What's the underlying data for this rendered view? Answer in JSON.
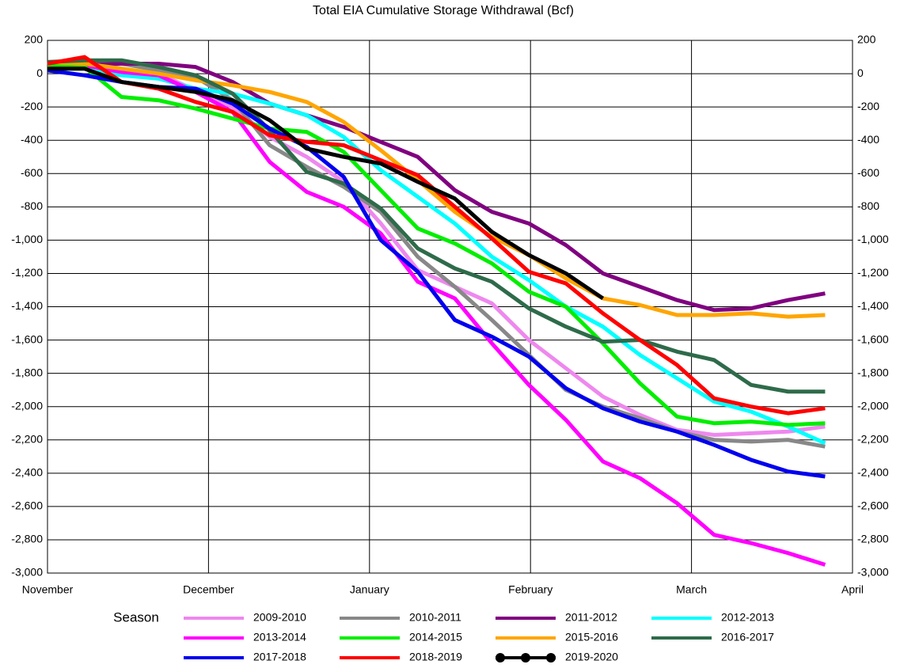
{
  "chart_data": {
    "type": "line",
    "title": "Total EIA Cumulative Storage Withdrawal (Bcf)",
    "legend_title": "Season",
    "grid": true,
    "x": [
      0,
      0.23,
      0.46,
      0.69,
      0.92,
      1.15,
      1.38,
      1.61,
      1.84,
      2.07,
      2.3,
      2.53,
      2.76,
      2.99,
      3.22,
      3.45,
      3.68,
      3.91,
      4.14,
      4.37,
      4.6,
      4.83
    ],
    "xlim": [
      0,
      5
    ],
    "xticks": [
      {
        "value": 0,
        "label": "November"
      },
      {
        "value": 1,
        "label": "December"
      },
      {
        "value": 2,
        "label": "January"
      },
      {
        "value": 3,
        "label": "February"
      },
      {
        "value": 4,
        "label": "March"
      },
      {
        "value": 5,
        "label": "April"
      }
    ],
    "ylim": [
      -3000,
      200
    ],
    "yticks": [
      {
        "value": -3000,
        "label": "-3,000"
      },
      {
        "value": -2800,
        "label": "-2,800"
      },
      {
        "value": -2600,
        "label": "-2,600"
      },
      {
        "value": -2400,
        "label": "-2,400"
      },
      {
        "value": -2200,
        "label": "-2,200"
      },
      {
        "value": -2000,
        "label": "-2,000"
      },
      {
        "value": -1800,
        "label": "-1,800"
      },
      {
        "value": -1600,
        "label": "-1,600"
      },
      {
        "value": -1400,
        "label": "-1,400"
      },
      {
        "value": -1200,
        "label": "-1,200"
      },
      {
        "value": -1000,
        "label": "-1,000"
      },
      -800,
      -600,
      -400,
      -200,
      0,
      200
    ],
    "series": [
      {
        "name": "2009-2010",
        "color": "#ee88ee",
        "values": [
          50,
          60,
          10,
          0,
          -100,
          -200,
          -380,
          -500,
          -650,
          -900,
          -1180,
          -1280,
          -1380,
          -1600,
          -1770,
          -1940,
          -2050,
          -2140,
          -2170,
          -2160,
          -2150,
          -2120
        ]
      },
      {
        "name": "2010-2011",
        "color": "#888888",
        "values": [
          50,
          70,
          60,
          20,
          -20,
          -160,
          -430,
          -560,
          -680,
          -830,
          -1100,
          -1280,
          -1480,
          -1690,
          -1900,
          -2000,
          -2070,
          -2150,
          -2200,
          -2210,
          -2200,
          -2240
        ]
      },
      {
        "name": "2011-2012",
        "color": "#800080",
        "values": [
          50,
          50,
          60,
          60,
          40,
          -50,
          -180,
          -250,
          -320,
          -410,
          -500,
          -700,
          -830,
          -900,
          -1030,
          -1200,
          -1280,
          -1360,
          -1420,
          -1410,
          -1360,
          -1320
        ]
      },
      {
        "name": "2012-2013",
        "color": "#00ffff",
        "values": [
          30,
          30,
          -10,
          -30,
          -90,
          -120,
          -180,
          -250,
          -380,
          -580,
          -740,
          -900,
          -1100,
          -1240,
          -1400,
          -1520,
          -1690,
          -1830,
          -1970,
          -2030,
          -2120,
          -2220
        ]
      },
      {
        "name": "2013-2014",
        "color": "#ff00ff",
        "values": [
          60,
          50,
          10,
          -10,
          -110,
          -230,
          -530,
          -710,
          -800,
          -960,
          -1250,
          -1350,
          -1620,
          -1870,
          -2080,
          -2330,
          -2430,
          -2580,
          -2770,
          -2820,
          -2880,
          -2950
        ]
      },
      {
        "name": "2014-2015",
        "color": "#00ee00",
        "values": [
          50,
          40,
          -140,
          -160,
          -210,
          -270,
          -330,
          -350,
          -470,
          -700,
          -930,
          -1020,
          -1140,
          -1310,
          -1400,
          -1620,
          -1860,
          -2060,
          -2100,
          -2090,
          -2110,
          -2100
        ]
      },
      {
        "name": "2015-2016",
        "color": "#ffa500",
        "values": [
          70,
          60,
          30,
          0,
          -40,
          -70,
          -110,
          -170,
          -290,
          -460,
          -640,
          -830,
          -980,
          -1090,
          -1230,
          -1350,
          -1390,
          -1450,
          -1450,
          -1440,
          -1460,
          -1450
        ]
      },
      {
        "name": "2016-2017",
        "color": "#2e6b4a",
        "values": [
          70,
          80,
          80,
          40,
          -10,
          -120,
          -340,
          -590,
          -660,
          -810,
          -1050,
          -1170,
          -1250,
          -1410,
          -1520,
          -1610,
          -1600,
          -1670,
          -1720,
          -1870,
          -1910,
          -1910
        ]
      },
      {
        "name": "2017-2018",
        "color": "#0000ee",
        "values": [
          20,
          -10,
          -50,
          -80,
          -90,
          -180,
          -330,
          -440,
          -620,
          -1000,
          -1190,
          -1480,
          -1580,
          -1700,
          -1890,
          -2010,
          -2090,
          -2150,
          -2230,
          -2320,
          -2390,
          -2420
        ]
      },
      {
        "name": "2018-2019",
        "color": "#ff0000",
        "values": [
          60,
          100,
          -50,
          -90,
          -170,
          -230,
          -370,
          -410,
          -430,
          -520,
          -610,
          -800,
          -990,
          -1190,
          -1260,
          -1440,
          -1600,
          -1750,
          -1950,
          -2000,
          -2040,
          -2010
        ]
      },
      {
        "name": "2019-2020",
        "color": "#000000",
        "values": [
          30,
          30,
          -50,
          -80,
          -110,
          -160,
          -280,
          -450,
          -500,
          -540,
          -650,
          -750,
          -950,
          -1090,
          -1200,
          -1350,
          null,
          null,
          null,
          null,
          null,
          null
        ]
      }
    ]
  }
}
